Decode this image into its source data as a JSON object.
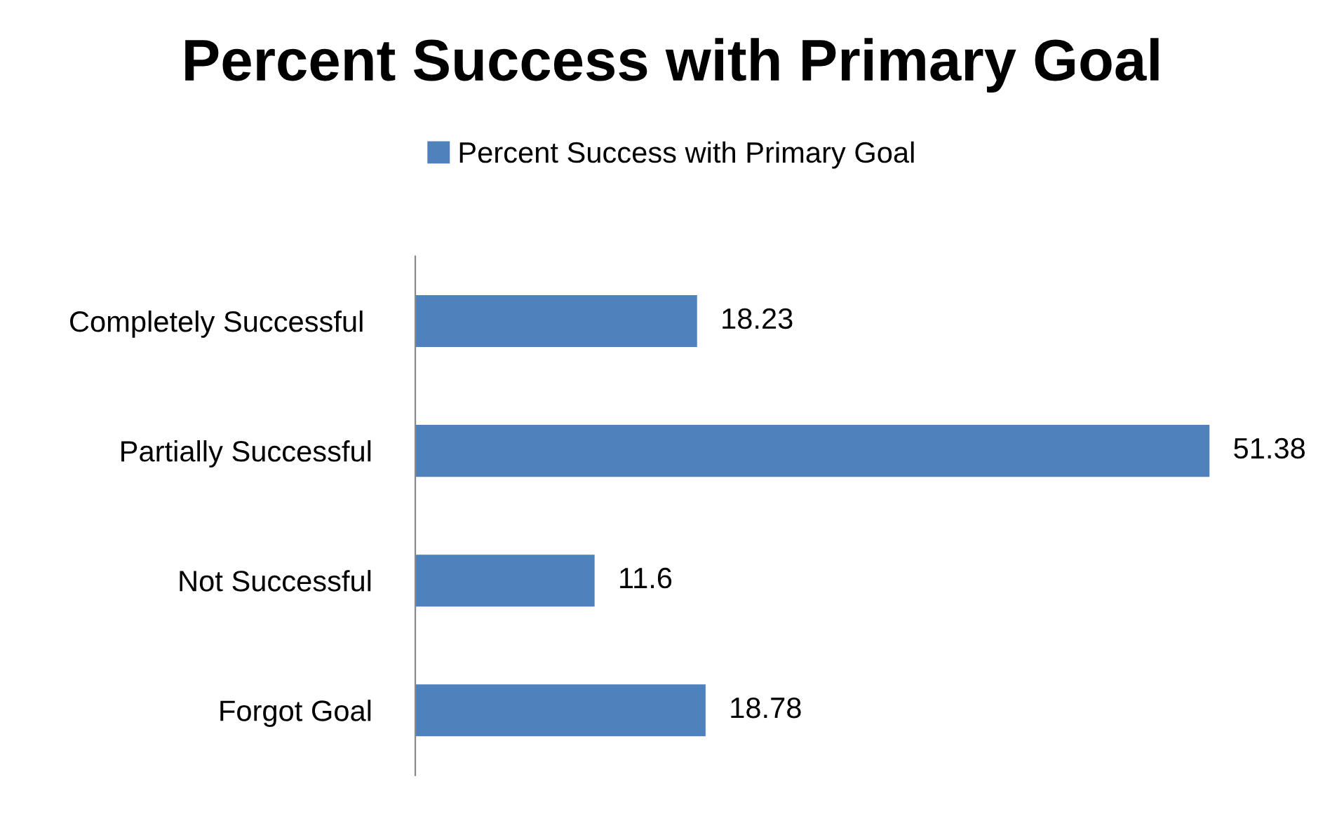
{
  "chart_data": {
    "type": "bar",
    "orientation": "horizontal",
    "title": "Percent Success with Primary Goal",
    "categories": [
      "Completely Successful ",
      "Partially Successful",
      "Not Successful",
      "Forgot Goal"
    ],
    "series": [
      {
        "name": "Percent Success with Primary Goal",
        "color": "#4f81bd",
        "values": [
          18.23,
          51.38,
          11.6,
          18.78
        ]
      }
    ],
    "data_labels": true,
    "legend": "top",
    "grid": false,
    "tick_labels": "y"
  }
}
